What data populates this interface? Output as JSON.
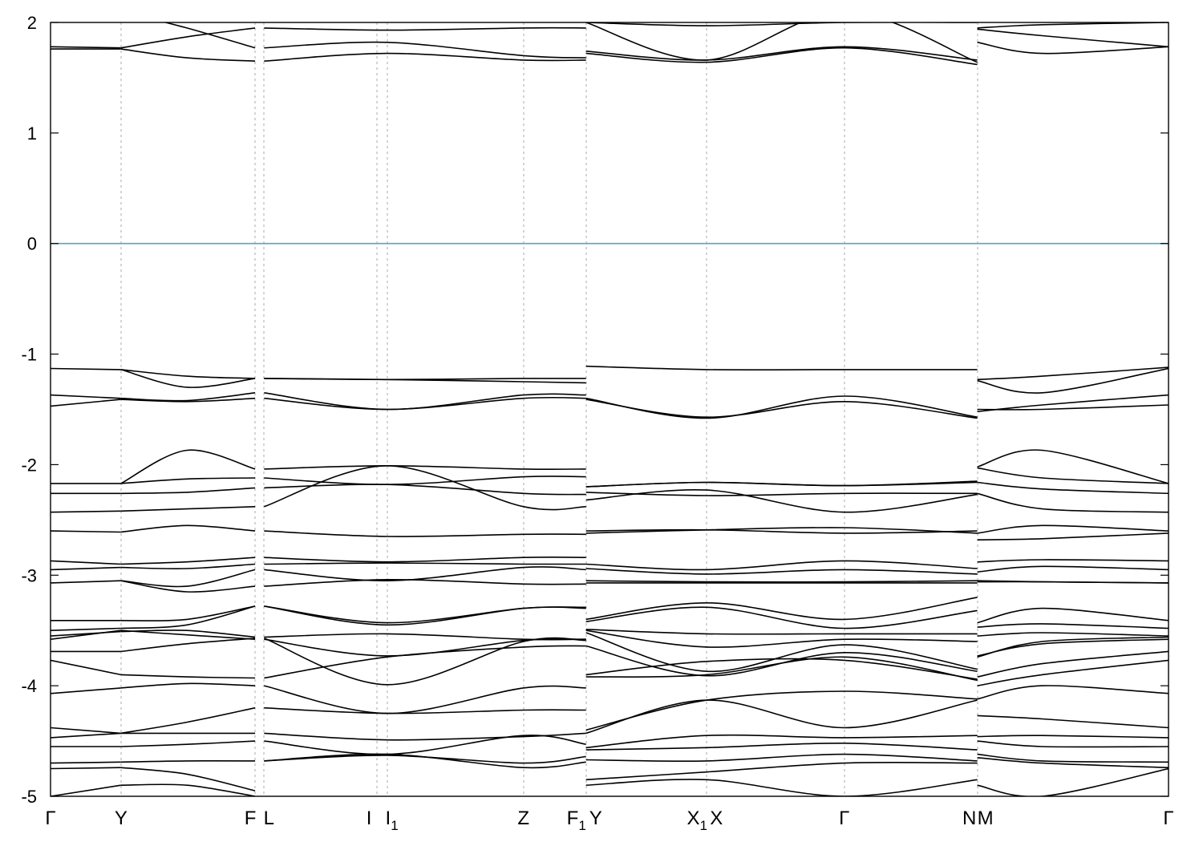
{
  "chart_data": {
    "type": "line",
    "title": "",
    "xlabel": "",
    "ylabel": "",
    "ylim": [
      -5,
      2
    ],
    "y_ticks": [
      "2",
      "1",
      "0",
      "-1",
      "-2",
      "-3",
      "-4",
      "-5"
    ],
    "y_tick_values": [
      2,
      1,
      0,
      -1,
      -2,
      -3,
      -4,
      -5
    ],
    "grid": false,
    "legend": "none",
    "fermi_level": 0,
    "colors": {
      "bands": "#000000",
      "fermi_line": "#4aa8c8",
      "kpoint_lines": "#aaaaaa"
    },
    "kpoints": [
      {
        "label": "Γ",
        "sub": "",
        "x": 0.0
      },
      {
        "label": "Y",
        "sub": "",
        "x": 0.063
      },
      {
        "label": "F",
        "sub": "",
        "x": 0.183
      },
      {
        "label": "L",
        "sub": "",
        "x": 0.191
      },
      {
        "label": "I",
        "sub": "",
        "x": 0.292
      },
      {
        "label": "I",
        "sub": "1",
        "x": 0.301
      },
      {
        "label": "Z",
        "sub": "",
        "x": 0.423
      },
      {
        "label": "F",
        "sub": "1",
        "x": 0.479
      },
      {
        "label": "Y",
        "sub": "",
        "x": 0.479
      },
      {
        "label": "X",
        "sub": "1",
        "x": 0.587
      },
      {
        "label": "X",
        "sub": "",
        "x": 0.587
      },
      {
        "label": "Γ",
        "sub": "",
        "x": 0.71
      },
      {
        "label": "N",
        "sub": "",
        "x": 0.829
      },
      {
        "label": "M",
        "sub": "",
        "x": 0.829
      },
      {
        "label": "Γ",
        "sub": "",
        "x": 1.0
      }
    ],
    "segments": [
      {
        "x": [
          0.0,
          0.063
        ],
        "bands": [
          [
            1.78,
            1.77
          ],
          [
            1.76,
            1.76
          ],
          [
            -1.13,
            -1.14
          ],
          [
            -1.37,
            -1.4
          ],
          [
            -1.47,
            -1.41
          ],
          [
            -2.17,
            -2.17
          ],
          [
            -2.26,
            -2.26
          ],
          [
            -2.43,
            -2.42
          ],
          [
            -2.6,
            -2.61
          ],
          [
            -2.87,
            -2.9
          ],
          [
            -2.95,
            -2.93
          ],
          [
            -3.07,
            -3.05
          ],
          [
            -3.41,
            -3.41
          ],
          [
            -3.5,
            -3.48
          ],
          [
            -3.55,
            -3.51
          ],
          [
            -3.58,
            -3.5
          ],
          [
            -3.69,
            -3.69
          ],
          [
            -3.77,
            -3.9
          ],
          [
            -4.07,
            -4.02
          ],
          [
            -4.38,
            -4.43
          ],
          [
            -4.47,
            -4.43
          ],
          [
            -4.55,
            -4.55
          ],
          [
            -4.7,
            -4.69
          ],
          [
            -4.75,
            -4.74
          ],
          [
            -5.0,
            -4.9
          ]
        ]
      },
      {
        "x": [
          0.063,
          0.122,
          0.183
        ],
        "bands": [
          [
            1.77,
            1.87,
            1.95
          ],
          [
            1.76,
            1.68,
            1.65
          ],
          [
            2.1,
            1.95,
            1.77
          ],
          [
            -1.14,
            -1.2,
            -1.22
          ],
          [
            -1.14,
            -1.3,
            -1.22
          ],
          [
            -1.4,
            -1.42,
            -1.35
          ],
          [
            -1.41,
            -1.43,
            -1.4
          ],
          [
            -2.17,
            -1.87,
            -2.04
          ],
          [
            -2.17,
            -2.13,
            -2.12
          ],
          [
            -2.26,
            -2.25,
            -2.21
          ],
          [
            -2.42,
            -2.4,
            -2.38
          ],
          [
            -2.61,
            -2.55,
            -2.6
          ],
          [
            -2.9,
            -2.88,
            -2.84
          ],
          [
            -2.93,
            -2.94,
            -2.9
          ],
          [
            -3.05,
            -3.1,
            -2.95
          ],
          [
            -3.05,
            -3.15,
            -3.1
          ],
          [
            -3.41,
            -3.4,
            -3.28
          ],
          [
            -3.48,
            -3.45,
            -3.28
          ],
          [
            -3.51,
            -3.5,
            -3.56
          ],
          [
            -3.5,
            -3.54,
            -3.58
          ],
          [
            -3.69,
            -3.62,
            -3.57
          ],
          [
            -3.9,
            -3.92,
            -3.93
          ],
          [
            -4.02,
            -3.98,
            -4.0
          ],
          [
            -4.43,
            -4.33,
            -4.2
          ],
          [
            -4.43,
            -4.43,
            -4.43
          ],
          [
            -4.55,
            -4.53,
            -4.5
          ],
          [
            -4.69,
            -4.68,
            -4.68
          ],
          [
            -4.74,
            -4.8,
            -4.95
          ],
          [
            -4.9,
            -4.9,
            -5.0
          ]
        ]
      },
      {
        "x": [
          0.191,
          0.301,
          0.423,
          0.479
        ],
        "bands": [
          [
            1.95,
            1.93,
            1.95,
            1.95
          ],
          [
            1.77,
            1.82,
            1.7,
            1.68
          ],
          [
            1.65,
            1.72,
            1.66,
            1.66
          ],
          [
            -1.22,
            -1.23,
            -1.22,
            -1.22
          ],
          [
            -1.22,
            -1.23,
            -1.25,
            -1.26
          ],
          [
            -1.35,
            -1.5,
            -1.37,
            -1.37
          ],
          [
            -1.4,
            -1.5,
            -1.4,
            -1.4
          ],
          [
            -2.04,
            -2.01,
            -2.04,
            -2.04
          ],
          [
            -2.12,
            -2.18,
            -2.11,
            -2.11
          ],
          [
            -2.21,
            -2.18,
            -2.26,
            -2.27
          ],
          [
            -2.38,
            -2.01,
            -2.38,
            -2.38
          ],
          [
            -2.6,
            -2.65,
            -2.63,
            -2.63
          ],
          [
            -2.84,
            -2.88,
            -2.84,
            -2.84
          ],
          [
            -2.9,
            -2.89,
            -2.9,
            -2.9
          ],
          [
            -2.95,
            -3.05,
            -2.93,
            -2.95
          ],
          [
            -3.1,
            -3.04,
            -3.08,
            -3.08
          ],
          [
            -3.28,
            -3.43,
            -3.3,
            -3.29
          ],
          [
            -3.28,
            -3.45,
            -3.3,
            -3.3
          ],
          [
            -3.56,
            -3.53,
            -3.58,
            -3.58
          ],
          [
            -3.58,
            -3.73,
            -3.59,
            -3.58
          ],
          [
            -3.57,
            -3.99,
            -3.6,
            -3.59
          ],
          [
            -3.93,
            -3.74,
            -3.65,
            -3.64
          ],
          [
            -4.0,
            -4.25,
            -4.02,
            -4.02
          ],
          [
            -4.2,
            -4.25,
            -4.22,
            -4.22
          ],
          [
            -4.43,
            -4.49,
            -4.46,
            -4.43
          ],
          [
            -4.5,
            -4.62,
            -4.45,
            -4.53
          ],
          [
            -4.68,
            -4.63,
            -4.7,
            -4.64
          ],
          [
            -4.68,
            -4.62,
            -4.74,
            -4.69
          ]
        ]
      },
      {
        "x": [
          0.479,
          0.587,
          0.71,
          0.829
        ],
        "bands": [
          [
            2.0,
            1.97,
            2.0,
            2.0
          ],
          [
            1.74,
            1.66,
            1.78,
            1.66
          ],
          [
            1.72,
            1.64,
            1.77,
            1.62
          ],
          [
            2.0,
            1.66,
            2.1,
            1.64
          ],
          [
            -1.11,
            -1.14,
            -1.14,
            -1.14
          ],
          [
            -1.4,
            -1.58,
            -1.38,
            -1.57
          ],
          [
            -1.41,
            -1.57,
            -1.43,
            -1.58
          ],
          [
            -2.2,
            -2.16,
            -2.19,
            -2.15
          ],
          [
            -2.2,
            -2.16,
            -2.19,
            -2.16
          ],
          [
            -2.25,
            -2.28,
            -2.26,
            -2.26
          ],
          [
            -2.32,
            -2.23,
            -2.43,
            -2.27
          ],
          [
            -2.6,
            -2.59,
            -2.62,
            -2.6
          ],
          [
            -2.62,
            -2.59,
            -2.57,
            -2.62
          ],
          [
            -2.9,
            -2.95,
            -2.87,
            -2.94
          ],
          [
            -2.94,
            -2.99,
            -2.95,
            -2.99
          ],
          [
            -3.05,
            -3.06,
            -3.06,
            -3.05
          ],
          [
            -3.07,
            -3.07,
            -3.07,
            -3.07
          ],
          [
            -3.4,
            -3.25,
            -3.4,
            -3.2
          ],
          [
            -3.42,
            -3.29,
            -3.48,
            -3.32
          ],
          [
            -3.49,
            -3.53,
            -3.53,
            -3.53
          ],
          [
            -3.5,
            -3.65,
            -3.58,
            -3.6
          ],
          [
            -3.52,
            -3.87,
            -3.63,
            -3.85
          ],
          [
            -3.64,
            -3.91,
            -3.7,
            -3.87
          ],
          [
            -3.92,
            -3.9,
            -3.74,
            -3.95
          ],
          [
            -3.9,
            -3.78,
            -3.77,
            -3.94
          ],
          [
            -4.43,
            -4.13,
            -4.38,
            -4.13
          ],
          [
            -4.4,
            -4.13,
            -4.05,
            -4.12
          ],
          [
            -4.56,
            -4.45,
            -4.47,
            -4.45
          ],
          [
            -4.58,
            -4.56,
            -4.52,
            -4.58
          ],
          [
            -4.67,
            -4.68,
            -4.62,
            -4.68
          ],
          [
            -4.85,
            -4.78,
            -4.7,
            -4.7
          ],
          [
            -4.9,
            -4.85,
            -5.0,
            -4.85
          ]
        ]
      },
      {
        "x": [
          0.829,
          0.887,
          1.0
        ],
        "bands": [
          [
            1.94,
            1.88,
            1.78
          ],
          [
            1.82,
            1.72,
            1.78
          ],
          [
            1.95,
            1.98,
            2.0
          ],
          [
            -1.23,
            -1.2,
            -1.12
          ],
          [
            -1.24,
            -1.35,
            -1.13
          ],
          [
            -1.52,
            -1.46,
            -1.37
          ],
          [
            -1.5,
            -1.5,
            -1.46
          ],
          [
            -2.02,
            -1.87,
            -2.17
          ],
          [
            -2.03,
            -2.12,
            -2.17
          ],
          [
            -2.16,
            -2.22,
            -2.26
          ],
          [
            -2.26,
            -2.4,
            -2.43
          ],
          [
            -2.62,
            -2.55,
            -2.6
          ],
          [
            -2.68,
            -2.67,
            -2.62
          ],
          [
            -2.88,
            -2.86,
            -2.87
          ],
          [
            -2.97,
            -2.92,
            -2.95
          ],
          [
            -3.05,
            -3.06,
            -3.07
          ],
          [
            -3.06,
            -3.06,
            -3.07
          ],
          [
            -3.43,
            -3.3,
            -3.41
          ],
          [
            -3.47,
            -3.44,
            -3.48
          ],
          [
            -3.55,
            -3.52,
            -3.55
          ],
          [
            -3.74,
            -3.6,
            -3.56
          ],
          [
            -3.73,
            -3.62,
            -3.58
          ],
          [
            -3.92,
            -3.8,
            -3.69
          ],
          [
            -4.0,
            -3.9,
            -3.77
          ],
          [
            -4.12,
            -4.0,
            -4.07
          ],
          [
            -4.27,
            -4.3,
            -4.38
          ],
          [
            -4.46,
            -4.45,
            -4.47
          ],
          [
            -4.5,
            -4.55,
            -4.55
          ],
          [
            -4.62,
            -4.68,
            -4.69
          ],
          [
            -4.65,
            -4.7,
            -4.74
          ],
          [
            -4.9,
            -5.0,
            -4.75
          ]
        ]
      }
    ]
  }
}
